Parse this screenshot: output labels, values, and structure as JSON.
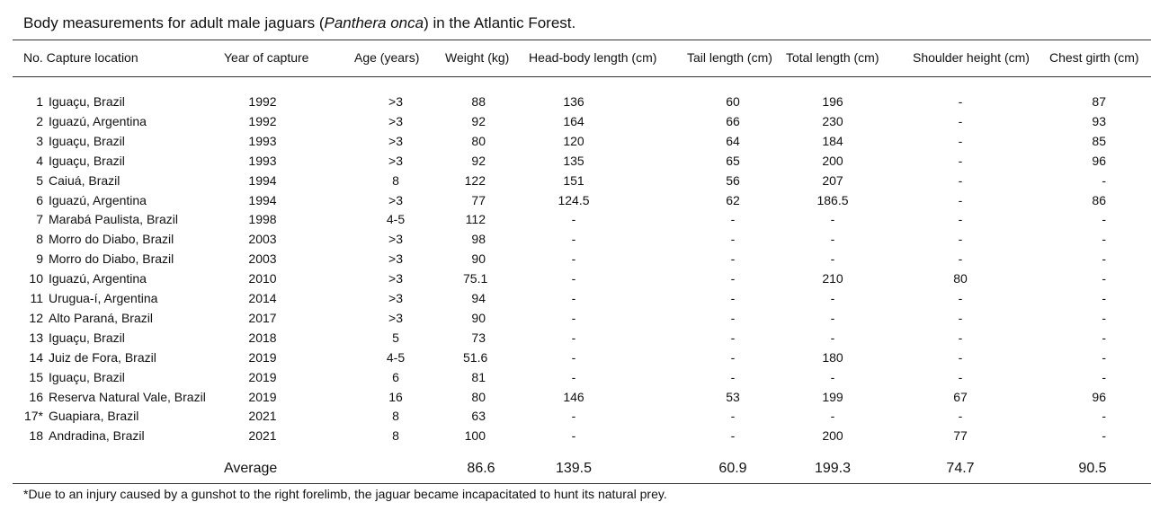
{
  "caption": {
    "prefix": "Body measurements for adult male jaguars (",
    "species": "Panthera onca",
    "suffix": ") in the Atlantic Forest."
  },
  "headers": {
    "no_location": "No. Capture location",
    "year": "Year of capture",
    "age": "Age (years)",
    "weight": "Weight (kg)",
    "head_body": "Head-body length (cm)",
    "tail": "Tail length (cm)",
    "total": "Total length (cm)",
    "shoulder": "Shoulder height (cm)",
    "chest": "Chest girth (cm)"
  },
  "rows": [
    {
      "no": "1",
      "location": "Iguaçu, Brazil",
      "year": "1992",
      "age": ">3",
      "weight": "88",
      "head_body": "136",
      "tail": "60",
      "total": "196",
      "shoulder": "-",
      "chest": "87"
    },
    {
      "no": "2",
      "location": "Iguazú, Argentina",
      "year": "1992",
      "age": ">3",
      "weight": "92",
      "head_body": "164",
      "tail": "66",
      "total": "230",
      "shoulder": "-",
      "chest": "93"
    },
    {
      "no": "3",
      "location": "Iguaçu, Brazil",
      "year": "1993",
      "age": ">3",
      "weight": "80",
      "head_body": "120",
      "tail": "64",
      "total": "184",
      "shoulder": "-",
      "chest": "85"
    },
    {
      "no": "4",
      "location": "Iguaçu, Brazil",
      "year": "1993",
      "age": ">3",
      "weight": "92",
      "head_body": "135",
      "tail": "65",
      "total": "200",
      "shoulder": "-",
      "chest": "96"
    },
    {
      "no": "5",
      "location": "Caiuá, Brazil",
      "year": "1994",
      "age": "8",
      "weight": "122",
      "head_body": "151",
      "tail": "56",
      "total": "207",
      "shoulder": "-",
      "chest": "-"
    },
    {
      "no": "6",
      "location": "Iguazú, Argentina",
      "year": "1994",
      "age": ">3",
      "weight": "77",
      "head_body": "124.5",
      "tail": "62",
      "total": "186.5",
      "shoulder": "-",
      "chest": "86"
    },
    {
      "no": "7",
      "location": "Marabá Paulista, Brazil",
      "year": "1998",
      "age": "4-5",
      "weight": "112",
      "head_body": "-",
      "tail": "-",
      "total": "-",
      "shoulder": "-",
      "chest": "-"
    },
    {
      "no": "8",
      "location": "Morro do Diabo, Brazil",
      "year": "2003",
      "age": ">3",
      "weight": "98",
      "head_body": "-",
      "tail": "-",
      "total": "-",
      "shoulder": "-",
      "chest": "-"
    },
    {
      "no": "9",
      "location": "Morro do Diabo, Brazil",
      "year": "2003",
      "age": ">3",
      "weight": "90",
      "head_body": "-",
      "tail": "-",
      "total": "-",
      "shoulder": "-",
      "chest": "-"
    },
    {
      "no": "10",
      "location": "Iguazú, Argentina",
      "year": "2010",
      "age": ">3",
      "weight": "75.1",
      "head_body": "-",
      "tail": "-",
      "total": "210",
      "shoulder": "80",
      "chest": "-"
    },
    {
      "no": "11",
      "location": "Urugua-í, Argentina",
      "year": "2014",
      "age": ">3",
      "weight": "94",
      "head_body": "-",
      "tail": "-",
      "total": "-",
      "shoulder": "-",
      "chest": "-"
    },
    {
      "no": "12",
      "location": "Alto Paraná, Brazil",
      "year": "2017",
      "age": ">3",
      "weight": "90",
      "head_body": "-",
      "tail": "-",
      "total": "-",
      "shoulder": "-",
      "chest": "-"
    },
    {
      "no": "13",
      "location": "Iguaçu, Brazil",
      "year": "2018",
      "age": "5",
      "weight": "73",
      "head_body": "-",
      "tail": "-",
      "total": "-",
      "shoulder": "-",
      "chest": "-"
    },
    {
      "no": "14",
      "location": "Juiz de Fora, Brazil",
      "year": "2019",
      "age": "4-5",
      "weight": "51.6",
      "head_body": "-",
      "tail": "-",
      "total": "180",
      "shoulder": "-",
      "chest": "-"
    },
    {
      "no": "15",
      "location": "Iguaçu, Brazil",
      "year": "2019",
      "age": "6",
      "weight": "81",
      "head_body": "-",
      "tail": "-",
      "total": "-",
      "shoulder": "-",
      "chest": "-"
    },
    {
      "no": "16",
      "location": "Reserva Natural Vale, Brazil",
      "year": "2019",
      "age": "16",
      "weight": "80",
      "head_body": "146",
      "tail": "53",
      "total": "199",
      "shoulder": "67",
      "chest": "96"
    },
    {
      "no": "17*",
      "location": "Guapiara, Brazil",
      "year": "2021",
      "age": "8",
      "weight": "63",
      "head_body": "-",
      "tail": "-",
      "total": "-",
      "shoulder": "-",
      "chest": "-"
    },
    {
      "no": "18",
      "location": "Andradina, Brazil",
      "year": "2021",
      "age": "8",
      "weight": "100",
      "head_body": "-",
      "tail": "-",
      "total": "200",
      "shoulder": "77",
      "chest": "-"
    }
  ],
  "average": {
    "label": "Average",
    "weight": "86.6",
    "head_body": "139.5",
    "tail": "60.9",
    "total": "199.3",
    "shoulder": "74.7",
    "chest": "90.5"
  },
  "footnote": "*Due to an injury caused by a gunshot to the right forelimb, the jaguar became  incapacitated to hunt its natural prey."
}
